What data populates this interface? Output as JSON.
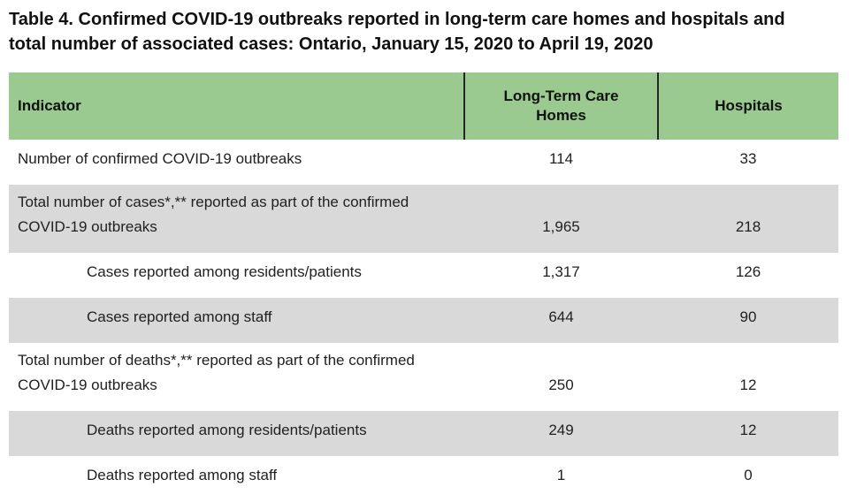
{
  "title": {
    "line1": "Table 4. Confirmed COVID-19 outbreaks reported in long-term care homes and hospitals and",
    "line2": "total number of associated cases: Ontario, January 15, 2020 to April 19, 2020"
  },
  "table": {
    "header": {
      "indicator": "Indicator",
      "ltc_homes": "Long-Term Care Homes",
      "hospitals": "Hospitals"
    },
    "rows": [
      {
        "indicator": "Number of confirmed COVID-19 outbreaks",
        "ltc_homes": "114",
        "hospitals": "33"
      },
      {
        "indicator": "Total number of cases*,** reported as part of the confirmed COVID-19 outbreaks",
        "ltc_homes": "1,965",
        "hospitals": "218"
      },
      {
        "indicator": "Cases reported among residents/patients",
        "ltc_homes": "1,317",
        "hospitals": "126"
      },
      {
        "indicator": "Cases reported among staff",
        "ltc_homes": "644",
        "hospitals": "90"
      },
      {
        "indicator": "Total number of deaths*,** reported as part of the confirmed COVID-19 outbreaks",
        "ltc_homes": "250",
        "hospitals": "12"
      },
      {
        "indicator": "Deaths reported among residents/patients",
        "ltc_homes": "249",
        "hospitals": "12"
      },
      {
        "indicator": "Deaths reported among staff",
        "ltc_homes": "1",
        "hospitals": "0"
      }
    ],
    "colors": {
      "header_bg": "#9BCA90",
      "shaded_row_bg": "#D9D9D9",
      "header_divider": "#262626",
      "text": "#212121"
    }
  }
}
